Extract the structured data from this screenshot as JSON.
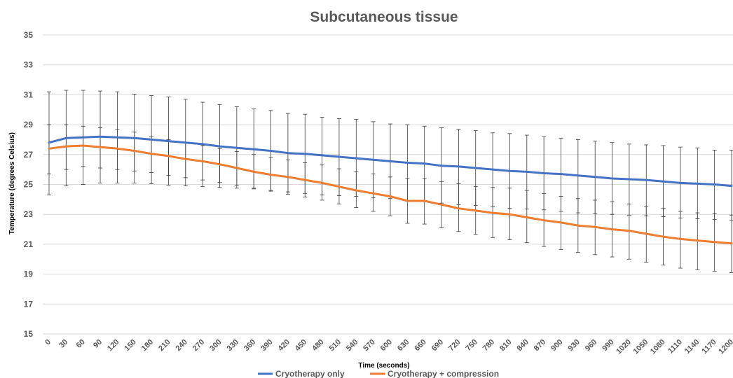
{
  "chart_data": {
    "type": "line",
    "title": "Subcutaneous tissue",
    "xlabel": "Time (seconds)",
    "ylabel": "Temperature (degrees Celsius)",
    "ylim": [
      15,
      35
    ],
    "yticks": [
      15,
      17,
      19,
      21,
      23,
      25,
      27,
      29,
      31,
      33,
      35
    ],
    "grid": true,
    "legend": "bottom",
    "x": [
      0,
      30,
      60,
      90,
      120,
      150,
      180,
      210,
      240,
      270,
      300,
      330,
      360,
      390,
      420,
      450,
      480,
      510,
      540,
      570,
      600,
      630,
      660,
      690,
      720,
      750,
      780,
      810,
      840,
      870,
      900,
      930,
      960,
      990,
      1020,
      1050,
      1080,
      1110,
      1140,
      1170,
      1200
    ],
    "series": [
      {
        "name": "Cryotherapy only",
        "color": "#4472C4",
        "values": [
          27.8,
          28.1,
          28.15,
          28.2,
          28.15,
          28.1,
          28.0,
          27.9,
          27.8,
          27.7,
          27.55,
          27.45,
          27.35,
          27.25,
          27.1,
          27.05,
          26.95,
          26.85,
          26.75,
          26.65,
          26.55,
          26.45,
          26.4,
          26.25,
          26.2,
          26.1,
          26.0,
          25.9,
          25.85,
          25.75,
          25.7,
          25.6,
          25.5,
          25.4,
          25.35,
          25.3,
          25.2,
          25.1,
          25.05,
          25.0,
          24.9
        ],
        "error_upper": [
          31.2,
          31.3,
          31.3,
          31.25,
          31.2,
          31.05,
          30.95,
          30.85,
          30.7,
          30.5,
          30.35,
          30.2,
          30.05,
          29.95,
          29.75,
          29.7,
          29.5,
          29.4,
          29.35,
          29.2,
          29.05,
          29.0,
          28.9,
          28.8,
          28.7,
          28.6,
          28.45,
          28.4,
          28.3,
          28.2,
          28.1,
          28.0,
          27.9,
          27.8,
          27.7,
          27.65,
          27.6,
          27.5,
          27.45,
          27.3,
          27.3
        ],
        "error_lower": [
          24.3,
          24.9,
          25.0,
          25.1,
          25.1,
          25.1,
          25.05,
          24.95,
          24.9,
          24.85,
          24.8,
          24.75,
          24.7,
          24.6,
          24.5,
          24.4,
          24.3,
          24.25,
          24.2,
          24.1,
          24.05,
          23.9,
          23.85,
          23.75,
          23.65,
          23.6,
          23.5,
          23.4,
          23.35,
          23.3,
          23.2,
          23.1,
          23.05,
          23.0,
          22.95,
          22.9,
          22.85,
          22.75,
          22.7,
          22.65,
          22.6
        ]
      },
      {
        "name": "Cryotherapy + compression",
        "color": "#ED7D31",
        "values": [
          27.4,
          27.55,
          27.6,
          27.5,
          27.4,
          27.25,
          27.05,
          26.9,
          26.7,
          26.55,
          26.35,
          26.1,
          25.85,
          25.65,
          25.5,
          25.3,
          25.1,
          24.85,
          24.6,
          24.4,
          24.2,
          23.9,
          23.9,
          23.65,
          23.4,
          23.25,
          23.1,
          23.0,
          22.8,
          22.6,
          22.45,
          22.25,
          22.15,
          22.0,
          21.9,
          21.7,
          21.5,
          21.35,
          21.25,
          21.15,
          21.05
        ],
        "error_upper": [
          29.0,
          29.0,
          28.9,
          28.8,
          28.65,
          28.5,
          28.2,
          28.0,
          27.8,
          27.6,
          27.4,
          27.2,
          27.0,
          26.8,
          26.65,
          26.45,
          26.3,
          26.05,
          25.85,
          25.7,
          25.5,
          25.4,
          25.4,
          25.2,
          25.05,
          24.85,
          24.8,
          24.75,
          24.6,
          24.4,
          24.2,
          24.05,
          23.95,
          23.85,
          23.7,
          23.5,
          23.4,
          23.2,
          23.1,
          23.05,
          22.95
        ],
        "error_lower": [
          25.7,
          26.0,
          26.2,
          26.1,
          26.0,
          25.9,
          25.8,
          25.6,
          25.45,
          25.3,
          25.15,
          24.95,
          24.75,
          24.55,
          24.35,
          24.15,
          23.95,
          23.7,
          23.45,
          23.2,
          22.9,
          22.4,
          22.35,
          22.1,
          21.85,
          21.65,
          21.45,
          21.3,
          21.1,
          20.85,
          20.65,
          20.45,
          20.3,
          20.15,
          20.0,
          19.8,
          19.6,
          19.4,
          19.3,
          19.2,
          19.1
        ]
      }
    ]
  }
}
